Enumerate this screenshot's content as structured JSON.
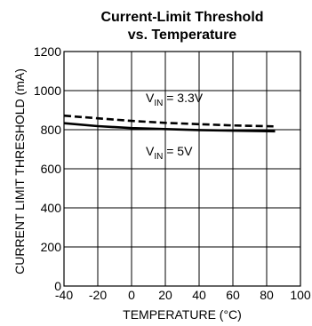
{
  "chart_data": {
    "type": "line",
    "title": "Current-Limit Threshold",
    "subtitle": "vs. Temperature",
    "xlabel": "TEMPERATURE (°C)",
    "ylabel": "CURRENT LIMIT THRESHOLD (mA)",
    "xlim": [
      -40,
      100
    ],
    "ylim": [
      0,
      1200
    ],
    "x_ticks": [
      "-40",
      "-20",
      "0",
      "20",
      "40",
      "60",
      "80",
      "100"
    ],
    "y_ticks": [
      "0",
      "200",
      "400",
      "600",
      "800",
      "1000",
      "1200"
    ],
    "grid": true,
    "series": [
      {
        "style": "dashed",
        "x": [
          -40,
          -20,
          0,
          20,
          40,
          60,
          85
        ],
        "y": [
          872,
          858,
          845,
          835,
          828,
          822,
          817
        ]
      },
      {
        "style": "solid",
        "x": [
          -40,
          -20,
          0,
          20,
          40,
          60,
          85
        ],
        "y": [
          833,
          818,
          808,
          803,
          798,
          795,
          792
        ]
      }
    ],
    "annotations": [
      {
        "prefix": "V",
        "sub": "IN",
        "suffix": " = 3.3V"
      },
      {
        "prefix": "V",
        "sub": "IN",
        "suffix": " = 5V"
      }
    ]
  }
}
